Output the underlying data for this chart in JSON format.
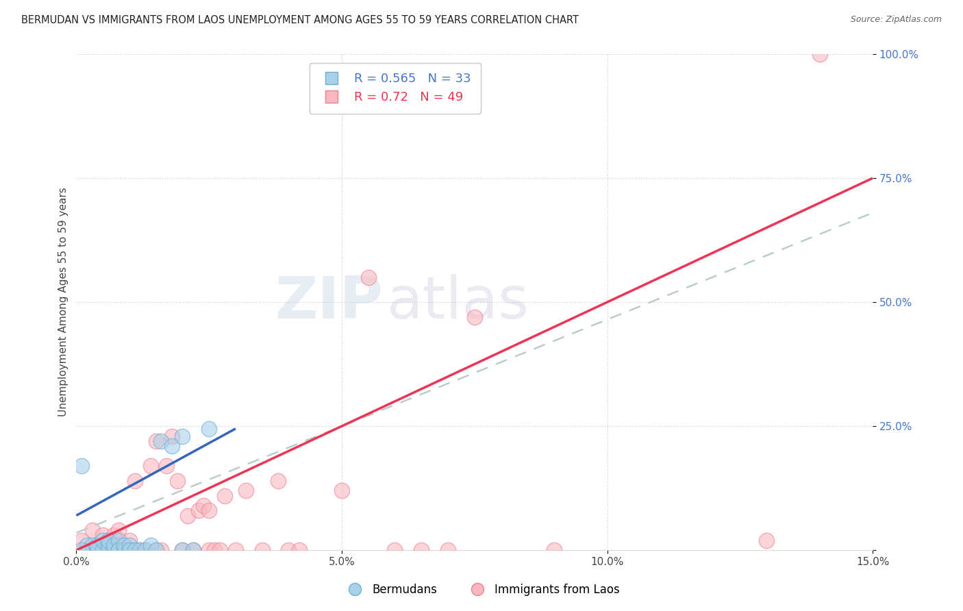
{
  "title": "BERMUDAN VS IMMIGRANTS FROM LAOS UNEMPLOYMENT AMONG AGES 55 TO 59 YEARS CORRELATION CHART",
  "source": "Source: ZipAtlas.com",
  "ylabel": "Unemployment Among Ages 55 to 59 years",
  "xlim": [
    0,
    0.15
  ],
  "ylim": [
    0,
    1.0
  ],
  "legend_bermudan": "Bermudans",
  "legend_laos": "Immigrants from Laos",
  "r_bermudan": 0.565,
  "n_bermudan": 33,
  "r_laos": 0.72,
  "n_laos": 49,
  "color_bermudan_fill": "#a8d0e8",
  "color_bermudan_edge": "#6aaed6",
  "color_laos_fill": "#f9b8c0",
  "color_laos_edge": "#f08090",
  "color_blue_line": "#3366bb",
  "color_pink_line": "#ee3355",
  "color_dashed": "#bbcccc",
  "background_color": "#ffffff",
  "watermark_zip": "ZIP",
  "watermark_atlas": "atlas",
  "blue_line_x": [
    0.0,
    0.03
  ],
  "blue_line_y": [
    0.07,
    0.245
  ],
  "pink_line_x": [
    0.0,
    0.15
  ],
  "pink_line_y": [
    0.0,
    0.75
  ],
  "dashed_line_x": [
    0.0,
    0.15
  ],
  "dashed_line_y": [
    0.035,
    0.68
  ],
  "scatter_bermudan_x": [
    0.001,
    0.002,
    0.003,
    0.003,
    0.004,
    0.004,
    0.005,
    0.005,
    0.006,
    0.006,
    0.006,
    0.007,
    0.007,
    0.008,
    0.008,
    0.008,
    0.009,
    0.009,
    0.01,
    0.01,
    0.01,
    0.011,
    0.012,
    0.013,
    0.014,
    0.015,
    0.016,
    0.018,
    0.02,
    0.022,
    0.001,
    0.02,
    0.025
  ],
  "scatter_bermudan_y": [
    0.17,
    0.01,
    0.01,
    0.0,
    0.0,
    0.01,
    0.0,
    0.02,
    0.01,
    0.0,
    0.02,
    0.0,
    0.01,
    0.0,
    0.02,
    0.0,
    0.0,
    0.01,
    0.0,
    0.01,
    0.0,
    0.0,
    0.0,
    0.0,
    0.01,
    0.0,
    0.22,
    0.21,
    0.0,
    0.0,
    0.0,
    0.23,
    0.245
  ],
  "scatter_laos_x": [
    0.001,
    0.002,
    0.003,
    0.004,
    0.005,
    0.005,
    0.006,
    0.006,
    0.007,
    0.007,
    0.008,
    0.009,
    0.01,
    0.01,
    0.011,
    0.012,
    0.013,
    0.014,
    0.015,
    0.015,
    0.016,
    0.017,
    0.018,
    0.019,
    0.02,
    0.021,
    0.022,
    0.023,
    0.024,
    0.025,
    0.025,
    0.026,
    0.027,
    0.028,
    0.03,
    0.032,
    0.035,
    0.038,
    0.04,
    0.042,
    0.05,
    0.055,
    0.06,
    0.065,
    0.07,
    0.075,
    0.09,
    0.13,
    0.14
  ],
  "scatter_laos_y": [
    0.02,
    0.0,
    0.04,
    0.0,
    0.03,
    0.0,
    0.02,
    0.0,
    0.0,
    0.03,
    0.04,
    0.0,
    0.02,
    0.0,
    0.14,
    0.0,
    0.0,
    0.17,
    0.0,
    0.22,
    0.0,
    0.17,
    0.23,
    0.14,
    0.0,
    0.07,
    0.0,
    0.08,
    0.09,
    0.0,
    0.08,
    0.0,
    0.0,
    0.11,
    0.0,
    0.12,
    0.0,
    0.14,
    0.0,
    0.0,
    0.12,
    0.55,
    0.0,
    0.0,
    0.0,
    0.47,
    0.0,
    0.02,
    1.0
  ]
}
